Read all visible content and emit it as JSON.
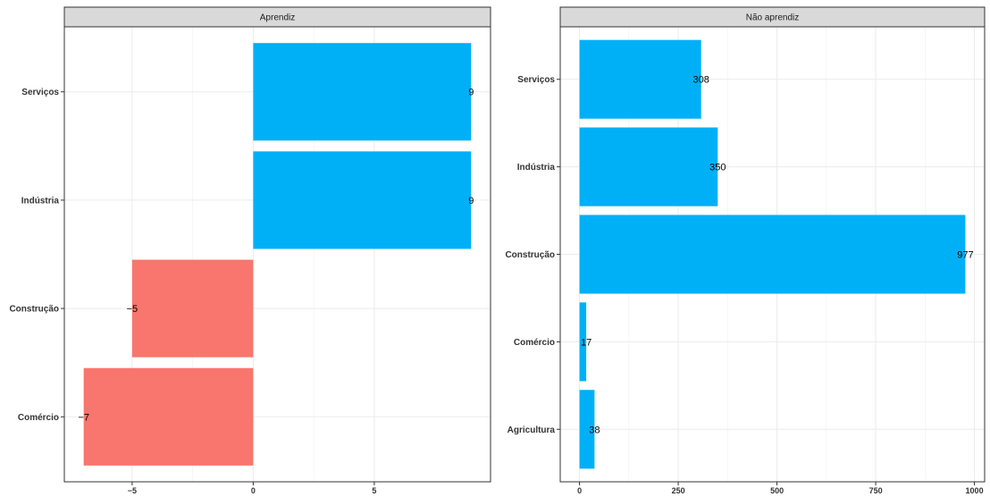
{
  "chart_data": [
    {
      "type": "bar",
      "orientation": "horizontal",
      "title": "Aprendiz",
      "categories": [
        "Serviços",
        "Indústria",
        "Construção",
        "Comércio"
      ],
      "values": [
        9,
        9,
        -5,
        -7
      ],
      "value_labels": [
        "9",
        "9",
        "−5",
        "−7"
      ],
      "xlim": [
        -7.0,
        9.0
      ],
      "xticks": [
        -5,
        0,
        5
      ],
      "xtick_labels": [
        "−5",
        "0",
        "5"
      ],
      "positive_color": "#00B0F6",
      "negative_color": "#F8766D",
      "grid": true
    },
    {
      "type": "bar",
      "orientation": "horizontal",
      "title": "Não aprendiz",
      "categories": [
        "Serviços",
        "Indústria",
        "Construção",
        "Comércio",
        "Agricultura"
      ],
      "values": [
        308,
        350,
        977,
        17,
        38
      ],
      "value_labels": [
        "308",
        "350",
        "977",
        "17",
        "38"
      ],
      "xlim": [
        0,
        977
      ],
      "xticks": [
        0,
        250,
        500,
        750,
        1000
      ],
      "xtick_labels": [
        "0",
        "250",
        "500",
        "750",
        "1000"
      ],
      "positive_color": "#00B0F6",
      "negative_color": "#F8766D",
      "grid": true
    }
  ]
}
